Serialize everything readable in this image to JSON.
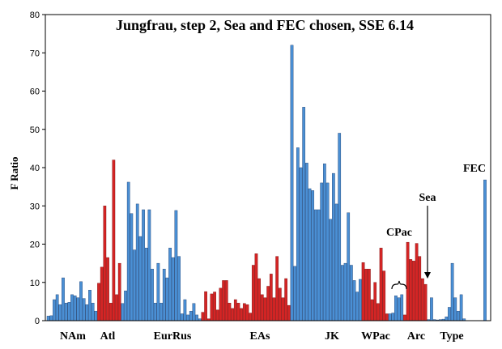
{
  "chart_data": {
    "type": "bar",
    "title": "Jungfrau, step 2, Sea and FEC chosen, SSE 6.14",
    "ylabel": "F Ratio",
    "xlabel": "",
    "ylim": [
      0,
      80
    ],
    "yticks": [
      0,
      10,
      20,
      30,
      40,
      50,
      60,
      70,
      80
    ],
    "grid": false,
    "legend": "none",
    "colors": {
      "blue": "#4a8fd4",
      "red": "#d42525",
      "yellow": "#ffff88",
      "edge": "#1f3f6f",
      "red_edge": "#7a1010"
    },
    "group_labels": [
      "NAm",
      "Atl",
      "EurRus",
      "EAs",
      "JK",
      "WPac",
      "CPac",
      "Arc",
      "Type"
    ],
    "annotations": [
      "Sea",
      "FEC"
    ],
    "values": [
      1.2,
      1.3,
      5.5,
      6.8,
      4.2,
      11.2,
      4.6,
      4.8,
      6.8,
      6.5,
      6.0,
      10.2,
      5.8,
      4.2,
      8.0,
      4.6,
      2.5,
      9.8,
      14.0,
      30.0,
      16.5,
      4.6,
      42.0,
      6.8,
      15.0,
      4.5,
      7.8,
      36.2,
      28.0,
      18.5,
      30.5,
      22.0,
      29.0,
      19.0,
      29.0,
      13.5,
      4.6,
      15.0,
      4.6,
      13.5,
      11.2,
      19.0,
      16.5,
      28.8,
      16.8,
      1.8,
      5.5,
      1.5,
      2.5,
      4.5,
      1.5,
      0.5,
      2.2,
      7.6,
      0.5,
      7.0,
      7.5,
      2.8,
      8.5,
      10.5,
      10.5,
      4.6,
      3.2,
      5.5,
      4.6,
      3.2,
      4.5,
      4.2,
      2.0,
      14.5,
      17.5,
      11.0,
      6.8,
      6.0,
      9.0,
      12.2,
      6.0,
      16.8,
      8.5,
      6.0,
      11.0,
      4.0,
      72.0,
      14.2,
      45.2,
      40.0,
      55.8,
      41.2,
      34.5,
      34.0,
      29.0,
      29.0,
      36.0,
      41.0,
      36.0,
      26.5,
      38.5,
      30.5,
      49.0,
      14.5,
      15.0,
      28.2,
      14.5,
      10.5,
      7.5,
      10.8,
      15.2,
      13.5,
      13.5,
      5.5,
      10.0,
      4.5,
      19.0,
      13.0,
      1.8,
      1.8,
      2.0,
      6.5,
      6.0,
      6.8,
      1.5,
      20.5,
      16.0,
      15.6,
      20.2,
      16.8,
      11.0,
      9.5,
      0.3,
      6.0,
      0.3,
      0.2,
      0.3,
      0.4,
      1.0,
      3.5,
      15.0,
      6.0,
      2.5,
      6.8,
      0.5,
      0.0,
      0.0,
      0.0,
      0.0,
      0.0,
      0.0,
      36.8
    ],
    "bar_colors": [
      "b",
      "b",
      "b",
      "b",
      "b",
      "b",
      "b",
      "b",
      "b",
      "b",
      "b",
      "b",
      "b",
      "b",
      "b",
      "b",
      "b",
      "r",
      "r",
      "r",
      "r",
      "r",
      "r",
      "r",
      "r",
      "b",
      "b",
      "b",
      "b",
      "b",
      "b",
      "b",
      "b",
      "b",
      "b",
      "b",
      "b",
      "b",
      "b",
      "b",
      "b",
      "b",
      "b",
      "b",
      "b",
      "b",
      "b",
      "b",
      "b",
      "b",
      "b",
      "b",
      "r",
      "r",
      "r",
      "r",
      "r",
      "r",
      "r",
      "r",
      "r",
      "r",
      "r",
      "r",
      "r",
      "r",
      "r",
      "r",
      "r",
      "r",
      "r",
      "r",
      "r",
      "r",
      "r",
      "r",
      "r",
      "r",
      "r",
      "r",
      "r",
      "r",
      "b",
      "b",
      "b",
      "b",
      "b",
      "b",
      "b",
      "b",
      "b",
      "b",
      "b",
      "b",
      "b",
      "b",
      "b",
      "b",
      "b",
      "b",
      "b",
      "b",
      "b",
      "b",
      "b",
      "b",
      "r",
      "r",
      "r",
      "r",
      "r",
      "r",
      "r",
      "r",
      "r",
      "b",
      "b",
      "b",
      "b",
      "b",
      "r",
      "r",
      "r",
      "r",
      "r",
      "r",
      "r",
      "r",
      "b",
      "b",
      "b",
      "b",
      "b",
      "b",
      "b",
      "b",
      "b",
      "b",
      "b",
      "b",
      "b",
      "b",
      "b",
      "b",
      "b",
      "b",
      "b",
      "b",
      "y"
    ]
  }
}
